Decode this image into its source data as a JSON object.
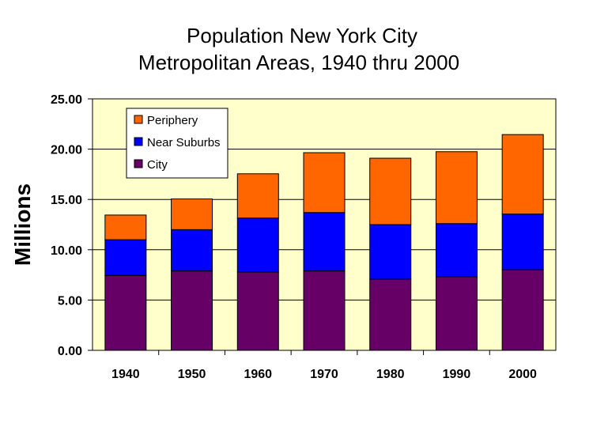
{
  "chart_data": {
    "type": "bar",
    "stacked": true,
    "title": [
      "Population New York City",
      "Metropolitan Areas, 1940 thru 2000"
    ],
    "xlabel": "",
    "ylabel": "Millions",
    "ylim": [
      0,
      25
    ],
    "yticks": [
      "0.00",
      "5.00",
      "10.00",
      "15.00",
      "20.00",
      "25.00"
    ],
    "grid": "horizontal",
    "legend_position": "top-left",
    "background_color": "#FFFFCC",
    "categories": [
      "1940",
      "1950",
      "1960",
      "1970",
      "1980",
      "1990",
      "2000"
    ],
    "series": [
      {
        "name": "City",
        "color": "#660066",
        "values": [
          7.45,
          7.89,
          7.78,
          7.89,
          7.07,
          7.32,
          8.01
        ]
      },
      {
        "name": "Near Suburbs",
        "color": "#0000FF",
        "values": [
          3.55,
          4.11,
          5.37,
          5.81,
          5.43,
          5.28,
          5.54
        ]
      },
      {
        "name": "Periphery",
        "color": "#FF6600",
        "values": [
          2.45,
          3.05,
          4.4,
          5.95,
          6.6,
          7.15,
          7.9
        ]
      }
    ],
    "legend": [
      "Periphery",
      "Near Suburbs",
      "City"
    ]
  }
}
